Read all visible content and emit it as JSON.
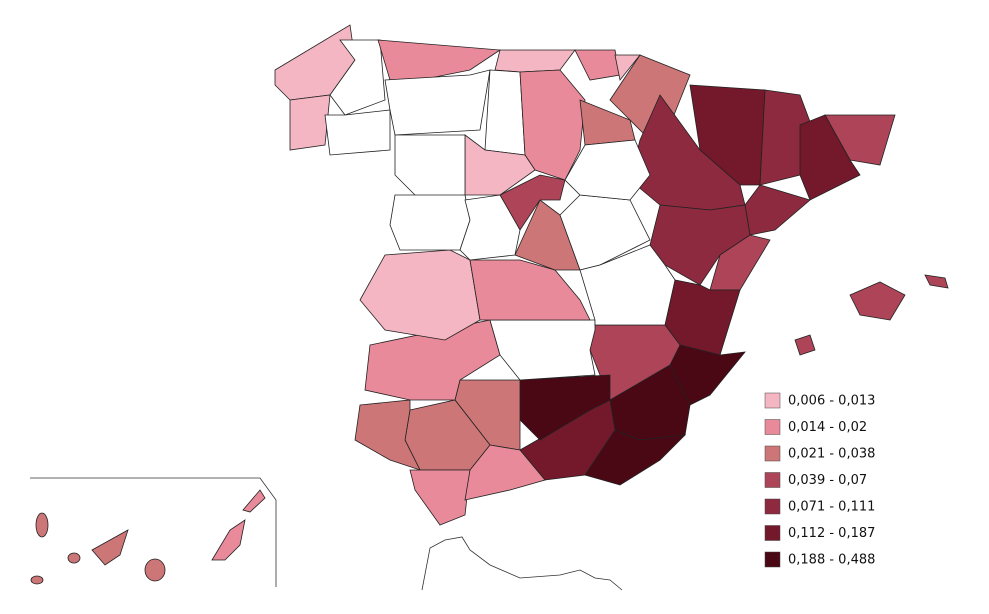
{
  "legend": {
    "items": [
      {
        "label": "0,006 - 0,013",
        "color": "#f4b6c2"
      },
      {
        "label": "0,014 - 0,02",
        "color": "#e88a99"
      },
      {
        "label": "0,021 - 0,038",
        "color": "#cd7677"
      },
      {
        "label": "0,039 - 0,07",
        "color": "#ad4458"
      },
      {
        "label": "0,071 - 0,111",
        "color": "#8e2a40"
      },
      {
        "label": "0,112 - 0,187",
        "color": "#74182c"
      },
      {
        "label": "0,188 - 0,488",
        "color": "#4a0714"
      }
    ]
  }
}
